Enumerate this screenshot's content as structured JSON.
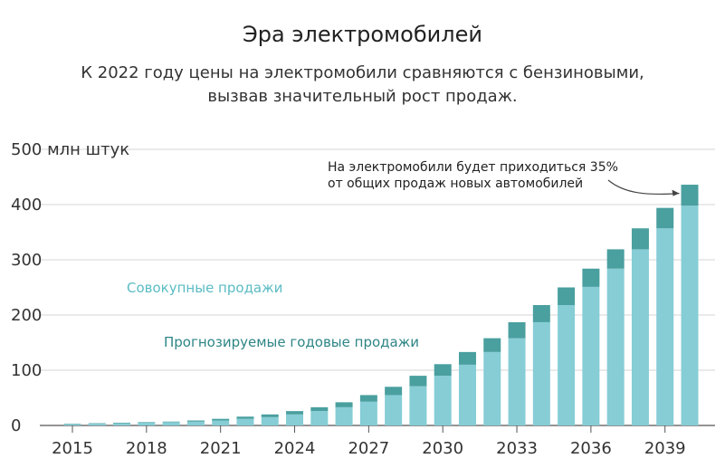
{
  "chart_data": {
    "type": "bar",
    "stacked": true,
    "title": "Эра электромобилей",
    "subtitle_line1": "К 2022 году цены на электромобили сравняются с бензиновыми,",
    "subtitle_line2": "вызвав значительный рост продаж.",
    "ylabel_top": "500 млн штук",
    "yticks": [
      0,
      100,
      200,
      300,
      400
    ],
    "ylim": [
      0,
      500
    ],
    "xticks": [
      "2015",
      "2018",
      "2021",
      "2024",
      "2027",
      "2030",
      "2033",
      "2036",
      "2039"
    ],
    "categories": [
      "2015",
      "2016",
      "2017",
      "2018",
      "2019",
      "2020",
      "2021",
      "2022",
      "2023",
      "2024",
      "2025",
      "2026",
      "2027",
      "2028",
      "2029",
      "2030",
      "2031",
      "2032",
      "2033",
      "2034",
      "2035",
      "2036",
      "2037",
      "2038",
      "2039",
      "2040"
    ],
    "series": [
      {
        "name": "Совокупные продажи",
        "color": "#86cdd6",
        "values": [
          2,
          3,
          4,
          5,
          6,
          7,
          9,
          12,
          15,
          20,
          26,
          33,
          43,
          55,
          71,
          90,
          110,
          133,
          158,
          187,
          218,
          251,
          284,
          319,
          357,
          398
        ]
      },
      {
        "name": "Прогнозируемые годовые продажи",
        "color": "#4a9f9f",
        "values": [
          1,
          1,
          1,
          1,
          1,
          2,
          3,
          4,
          5,
          6,
          7,
          9,
          12,
          15,
          19,
          21,
          23,
          25,
          29,
          31,
          32,
          33,
          35,
          38,
          37,
          38
        ]
      }
    ],
    "annotation_line1": "На электромобили будет приходиться 35%",
    "annotation_line2": "от общих продаж новых автомобилей"
  }
}
